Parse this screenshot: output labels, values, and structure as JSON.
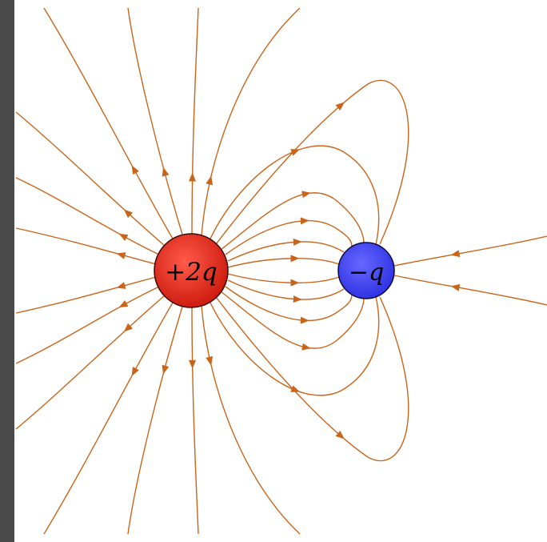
{
  "diagram": {
    "title": "",
    "line_color": "#c8651b",
    "background_color": "#ffffff",
    "frame_color": "#4a4a4a",
    "charges": [
      {
        "id": "positive",
        "label": "+2q",
        "fill": "#e62a1f",
        "fill_dark": "#b81209",
        "charge_units": 2
      },
      {
        "id": "negative",
        "label": "−q",
        "fill": "#4a4dff",
        "fill_dark": "#2426c8",
        "charge_units": -1
      }
    ],
    "field_lines": {
      "direction": "positive-to-negative",
      "arrow_icon": "triangle-arrow-icon"
    }
  }
}
